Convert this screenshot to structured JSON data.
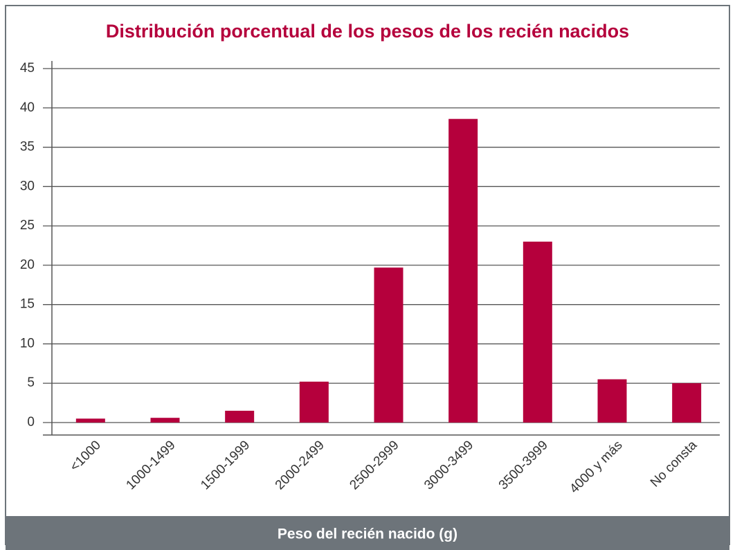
{
  "chart_data": {
    "type": "bar",
    "title": "Distribución porcentual de los pesos de los recién nacidos",
    "x_label": "Peso del recién nacido (g)",
    "categories": [
      "<1000",
      "1000-1499",
      "1500-1999",
      "2000-2499",
      "2500-2999",
      "3000-3499",
      "3500-3999",
      "4000 y más",
      "No consta"
    ],
    "values": [
      0.5,
      0.6,
      1.5,
      5.2,
      19.7,
      38.6,
      23.0,
      5.5,
      5.0
    ],
    "color": "#b5003c",
    "ylim": [
      0,
      45
    ],
    "yticks": [
      0,
      5,
      10,
      15,
      20,
      25,
      30,
      35,
      40,
      45
    ],
    "grid": true
  }
}
